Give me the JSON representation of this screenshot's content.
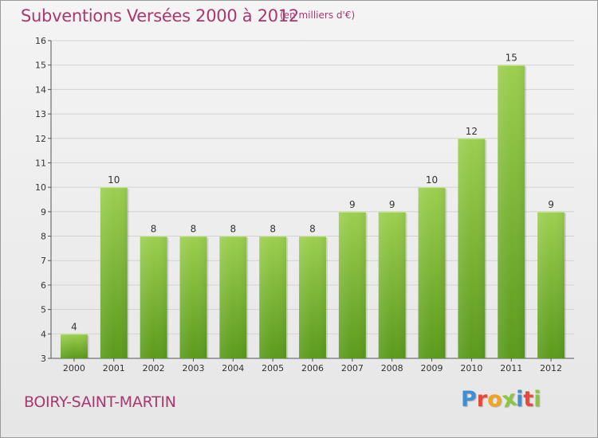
{
  "header": {
    "title": "Subventions Versées 2000 à 2012",
    "subtitle": "(en milliers d'€)"
  },
  "footer": {
    "commune": "BOIRY-SAINT-MARTIN",
    "logo_letters": [
      "P",
      "r",
      "o",
      "x",
      "i",
      "t",
      "i"
    ],
    "logo_colors": [
      "#3f8fd6",
      "#e7483a",
      "#f2a41c",
      "#8cc63f",
      "#3f8fd6",
      "#e7483a",
      "#8cc63f"
    ]
  },
  "colors": {
    "accent": "#a8386e",
    "bar_light": "#9ccf50",
    "bar_dark": "#5a9a1c"
  },
  "chart_data": {
    "type": "bar",
    "title": "Subventions Versées 2000 à 2012",
    "subtitle": "(en milliers d'€)",
    "categories": [
      "2000",
      "2001",
      "2002",
      "2003",
      "2004",
      "2005",
      "2006",
      "2007",
      "2008",
      "2009",
      "2010",
      "2011",
      "2012"
    ],
    "values": [
      4,
      10,
      8,
      8,
      8,
      8,
      8,
      9,
      9,
      10,
      12,
      15,
      9
    ],
    "ylim": [
      3,
      16
    ],
    "yticks": [
      3,
      4,
      5,
      6,
      7,
      8,
      9,
      10,
      11,
      12,
      13,
      14,
      15,
      16
    ],
    "grid": true,
    "xlabel": "",
    "ylabel": ""
  }
}
